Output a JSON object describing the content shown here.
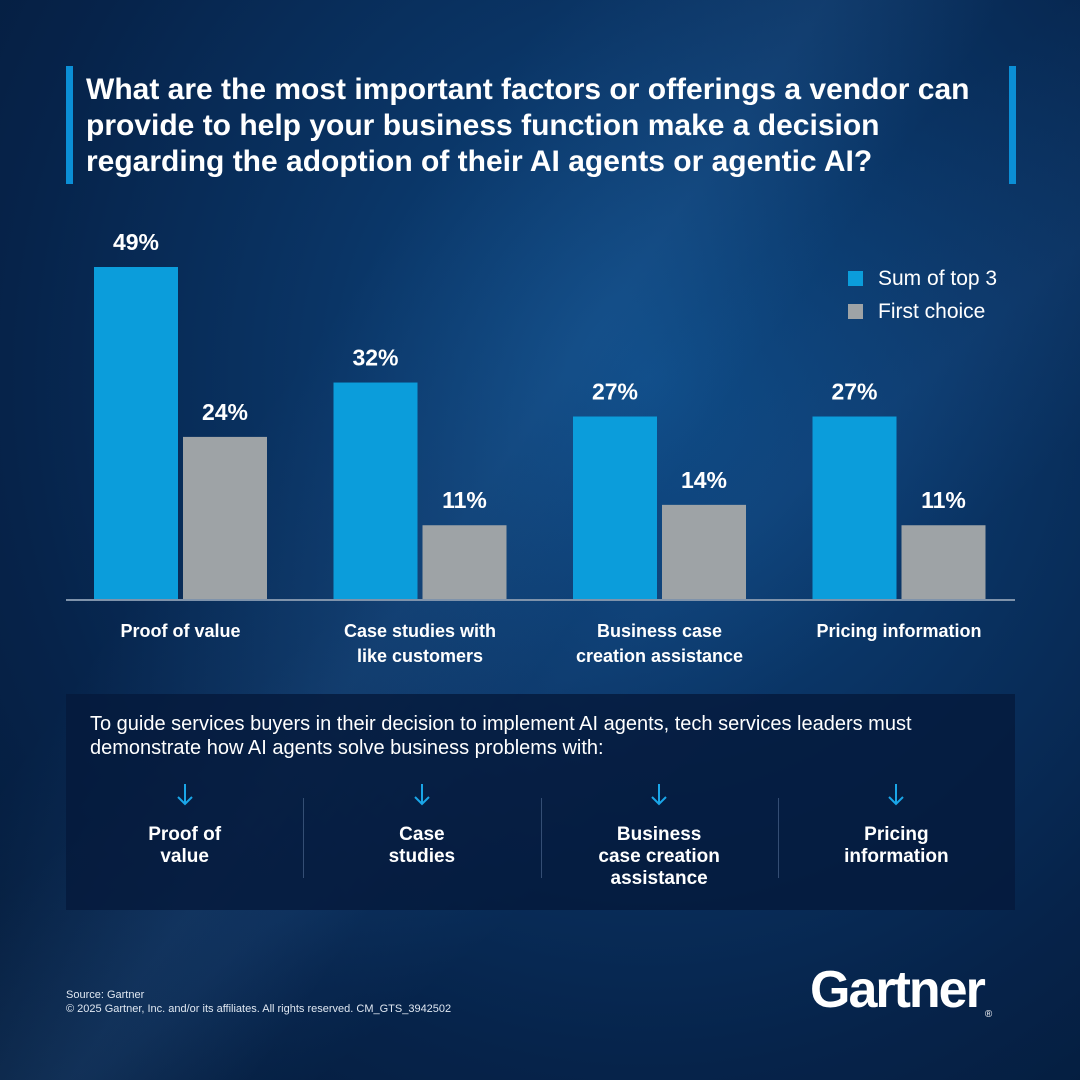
{
  "title": "What are the most important factors or offerings a vendor can provide to help your business function make a decision regarding the adoption of their AI agents or agentic AI?",
  "colors": {
    "series_top3": "#0b9ddb",
    "series_first": "#9ea3a6",
    "accent": "#0b8fd6",
    "axis": "#7f93ab"
  },
  "chart_data": {
    "type": "bar",
    "categories": [
      "Proof of value",
      "Case studies with like customers",
      "Business case creation assistance",
      "Pricing information"
    ],
    "category_lines": [
      [
        "Proof of value"
      ],
      [
        "Case studies with",
        "like customers"
      ],
      [
        "Business case",
        "creation assistance"
      ],
      [
        "Pricing information"
      ]
    ],
    "series": [
      {
        "name": "Sum of top 3",
        "values": [
          49,
          32,
          27,
          27
        ],
        "labels": [
          "49%",
          "32%",
          "27%",
          "27%"
        ]
      },
      {
        "name": "First choice",
        "values": [
          24,
          11,
          14,
          11
        ],
        "labels": [
          "24%",
          "11%",
          "14%",
          "11%"
        ]
      }
    ],
    "unit": "%",
    "ylim": [
      0,
      49
    ],
    "grid": false,
    "legend": "top-right"
  },
  "legend": {
    "items": [
      "Sum of top 3",
      "First choice"
    ]
  },
  "panel": {
    "text": "To guide services buyers in their decision to implement AI agents, tech services leaders must demonstrate how AI agents solve business problems with:",
    "items": [
      {
        "label": "Proof of\nvalue",
        "icon": "arrow-down-icon"
      },
      {
        "label": "Case\nstudies",
        "icon": "arrow-down-icon"
      },
      {
        "label": "Business\ncase creation\nassistance",
        "icon": "arrow-down-icon"
      },
      {
        "label": "Pricing\ninformation",
        "icon": "arrow-down-icon"
      }
    ]
  },
  "footer": {
    "source": "Source: Gartner",
    "copyright": "© 2025 Gartner, Inc. and/or its affiliates. All rights reserved. CM_GTS_3942502"
  },
  "logo": {
    "text": "Gartner",
    "reg": "®"
  }
}
